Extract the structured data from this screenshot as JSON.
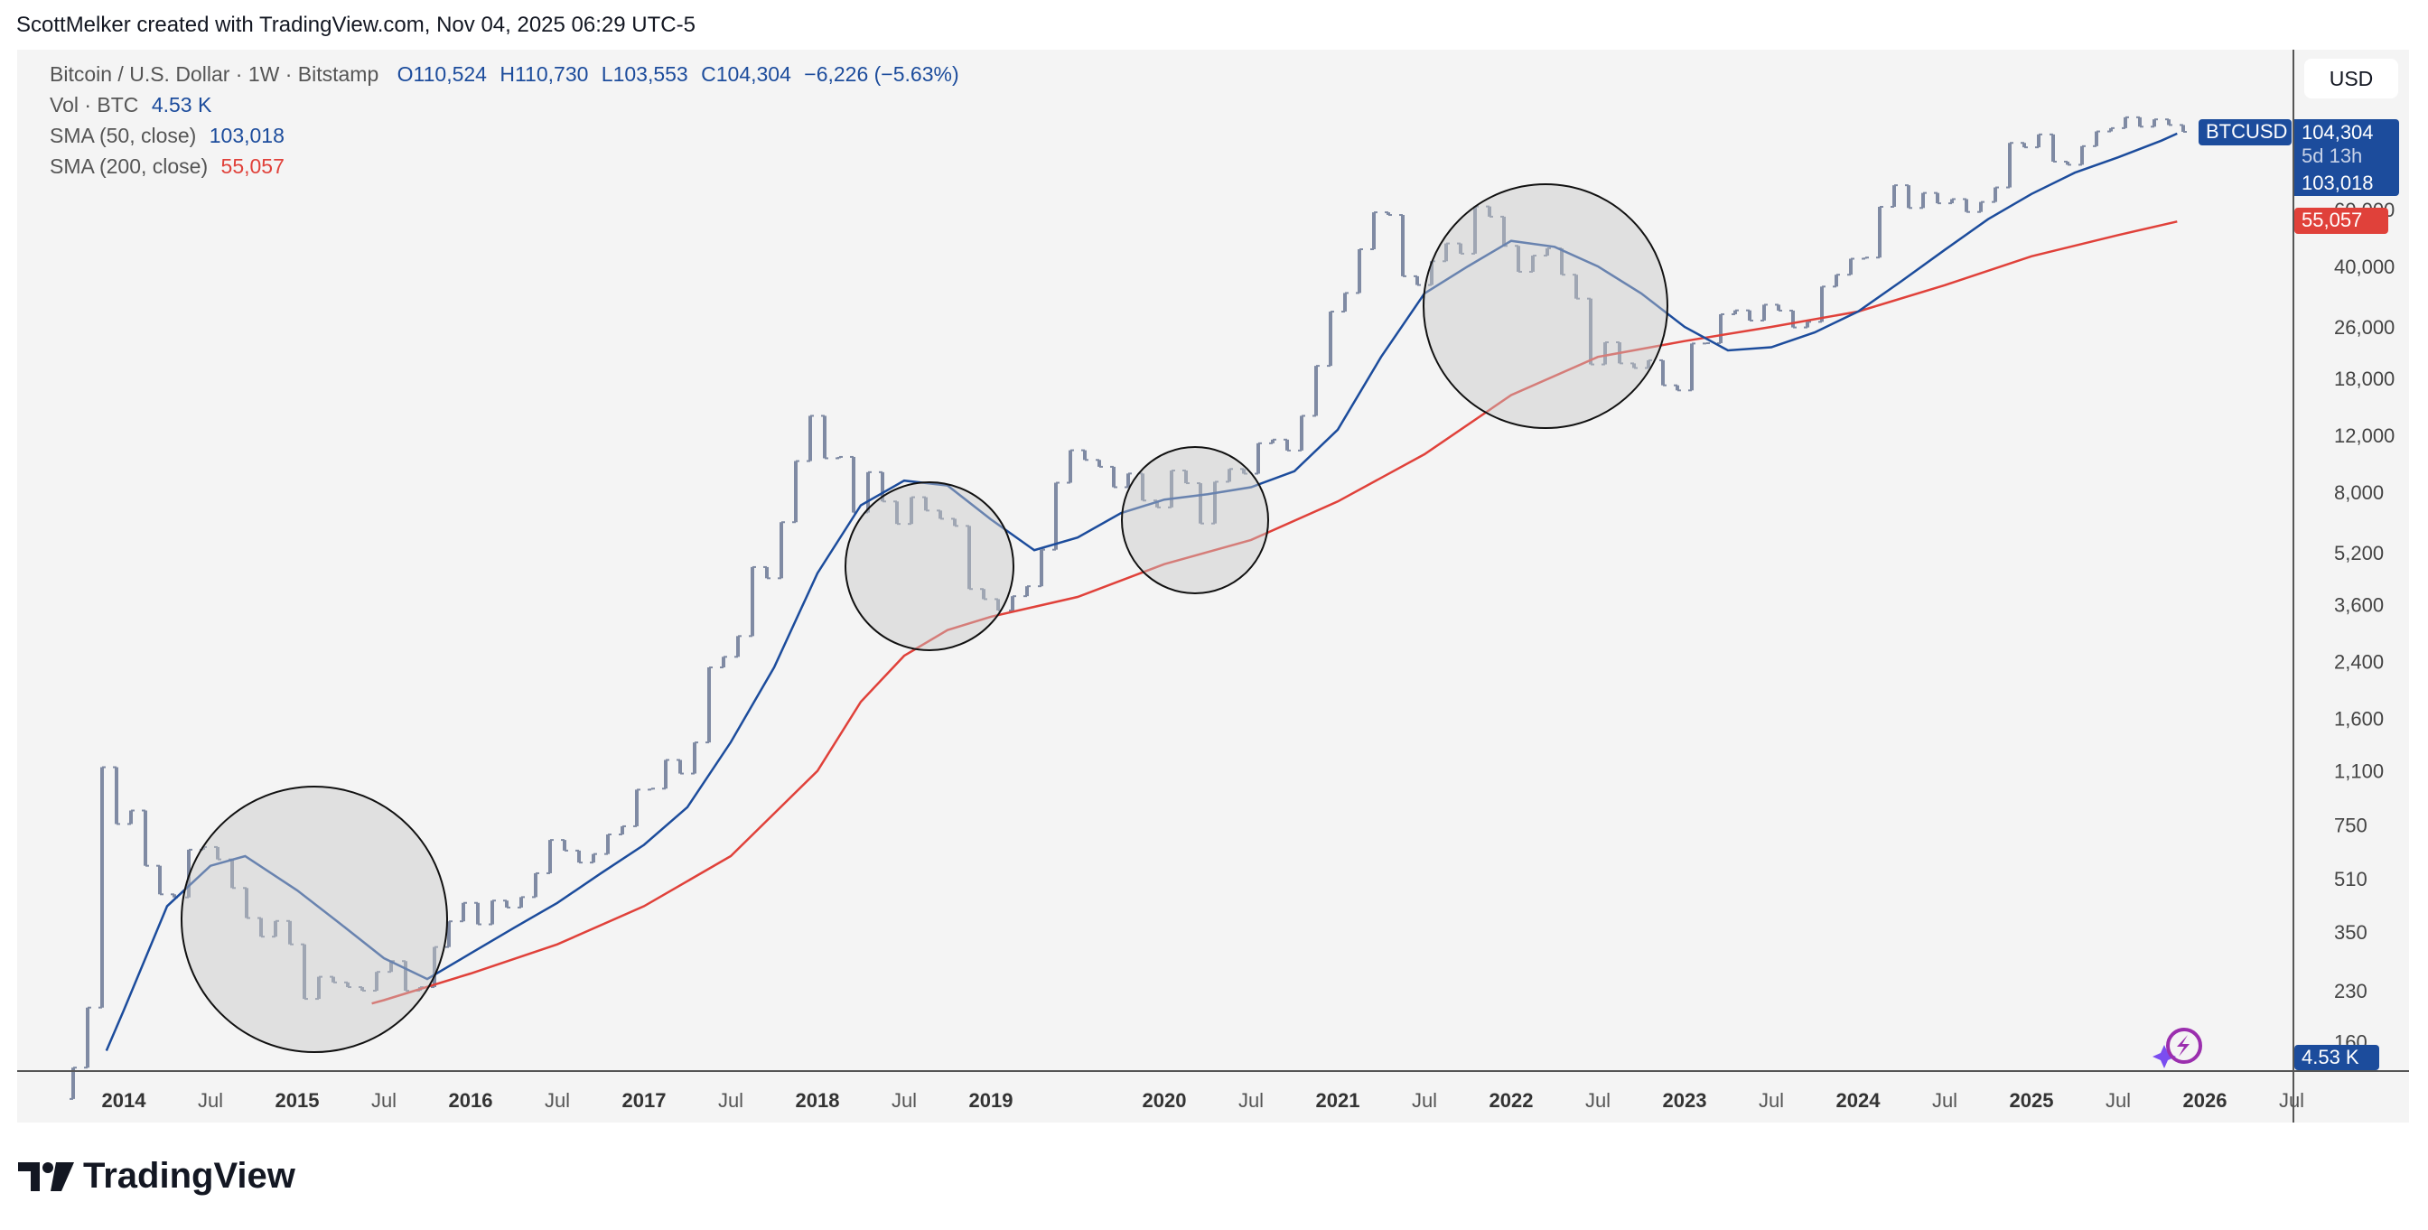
{
  "credit": "ScottMelker created with TradingView.com, Nov 04, 2025 06:29 UTC-5",
  "legend": {
    "symbol": "Bitcoin / U.S. Dollar · 1W · Bitstamp",
    "open": "O110,524",
    "high": "H110,730",
    "low": "L103,553",
    "close": "C104,304",
    "change": "−6,226 (−5.63%)",
    "vol_label": "Vol · BTC",
    "vol_value": "4.53 K",
    "sma50_label": "SMA (50, close)",
    "sma50_value": "103,018",
    "sma200_label": "SMA (200, close)",
    "sma200_value": "55,057"
  },
  "currency_button": "USD",
  "badges": {
    "symbol": "BTCUSD",
    "price": "104,304",
    "countdown": "5d 13h",
    "sma50": "103,018",
    "sma200": "55,057",
    "volume": "4.53 K"
  },
  "colors": {
    "price_badge": "#1c4c9c",
    "sma50": "#1c4c9c",
    "sma200": "#e0413a",
    "bars": "#7f8aa3",
    "panel": "#f4f4f4"
  },
  "brand": "TradingView",
  "chart_data": {
    "type": "line",
    "y_scale": "log",
    "y_ticks": [
      60000,
      40000,
      26000,
      18000,
      12000,
      8000,
      5200,
      3600,
      2400,
      1600,
      1100,
      750,
      510,
      350,
      230,
      160
    ],
    "x_ticks": [
      {
        "label": "2014",
        "t": 2014
      },
      {
        "label": "Jul",
        "t": 2014.5
      },
      {
        "label": "2015",
        "t": 2015
      },
      {
        "label": "Jul",
        "t": 2015.5
      },
      {
        "label": "2016",
        "t": 2016
      },
      {
        "label": "Jul",
        "t": 2016.5
      },
      {
        "label": "2017",
        "t": 2017
      },
      {
        "label": "Jul",
        "t": 2017.5
      },
      {
        "label": "2018",
        "t": 2018
      },
      {
        "label": "Jul",
        "t": 2018.5
      },
      {
        "label": "2019",
        "t": 2019
      },
      {
        "label": "2020",
        "t": 2020
      },
      {
        "label": "Jul",
        "t": 2020.5
      },
      {
        "label": "2021",
        "t": 2021
      },
      {
        "label": "Jul",
        "t": 2021.5
      },
      {
        "label": "2022",
        "t": 2022
      },
      {
        "label": "Jul",
        "t": 2022.5
      },
      {
        "label": "2023",
        "t": 2023
      },
      {
        "label": "Jul",
        "t": 2023.5
      },
      {
        "label": "2024",
        "t": 2024
      },
      {
        "label": "Jul",
        "t": 2024.5
      },
      {
        "label": "2025",
        "t": 2025
      },
      {
        "label": "Jul",
        "t": 2025.5
      },
      {
        "label": "2026",
        "t": 2026
      },
      {
        "label": "Jul",
        "t": 2026.5
      }
    ],
    "price_monthly_close": {
      "start": "2013-09",
      "values": [
        133,
        204,
        1130,
        754,
        830,
        560,
        457,
        447,
        628,
        640,
        586,
        478,
        386,
        338,
        378,
        320,
        217,
        254,
        244,
        236,
        230,
        263,
        284,
        230,
        236,
        314,
        377,
        430,
        369,
        437,
        416,
        448,
        531,
        673,
        624,
        573,
        609,
        700,
        742,
        963,
        970,
        1190,
        1080,
        1348,
        2300,
        2480,
        2875,
        4700,
        4340,
        6470,
        10000,
        13800,
        10200,
        10300,
        6930,
        9240,
        7500,
        6390,
        7730,
        7030,
        6630,
        6300,
        4020,
        3740,
        3450,
        3820,
        4100,
        5320,
        8570,
        10800,
        10080,
        9600,
        8300,
        9150,
        7550,
        7190,
        9350,
        8540,
        6410,
        8630,
        9450,
        9140,
        11350,
        11650,
        10780,
        13800,
        19700,
        28990,
        33100,
        45200,
        58800,
        57700,
        37300,
        35040,
        41500,
        47100,
        43800,
        61300,
        57000,
        46300,
        38500,
        43200,
        45500,
        37700,
        31800,
        19900,
        23300,
        20050,
        19400,
        20500,
        17150,
        16540,
        23100,
        23150,
        28450,
        29250,
        27200,
        30450,
        29200,
        25900,
        26950,
        34650,
        37700,
        42250,
        42600,
        61150,
        71300,
        60650,
        67500,
        62700,
        64600,
        58950,
        63300,
        70200,
        96400,
        93400,
        102400,
        84350,
        82500,
        94200,
        104600,
        107100,
        115700,
        108200,
        114000,
        109500,
        104304
      ]
    },
    "series": [
      {
        "name": "SMA (50, close)",
        "points": [
          [
            2013.9,
            150
          ],
          [
            2014.0,
            200
          ],
          [
            2014.25,
            420
          ],
          [
            2014.5,
            560
          ],
          [
            2014.7,
            600
          ],
          [
            2015.0,
            470
          ],
          [
            2015.25,
            370
          ],
          [
            2015.5,
            290
          ],
          [
            2015.75,
            250
          ],
          [
            2016.0,
            300
          ],
          [
            2016.25,
            360
          ],
          [
            2016.5,
            430
          ],
          [
            2016.75,
            530
          ],
          [
            2017.0,
            650
          ],
          [
            2017.25,
            850
          ],
          [
            2017.5,
            1350
          ],
          [
            2017.75,
            2300
          ],
          [
            2018.0,
            4500
          ],
          [
            2018.25,
            7300
          ],
          [
            2018.5,
            8700
          ],
          [
            2018.75,
            8400
          ],
          [
            2019.0,
            6600
          ],
          [
            2019.25,
            5300
          ],
          [
            2019.5,
            5800
          ],
          [
            2019.75,
            6900
          ],
          [
            2020.0,
            7600
          ],
          [
            2020.25,
            7900
          ],
          [
            2020.5,
            8300
          ],
          [
            2020.75,
            9300
          ],
          [
            2021.0,
            12500
          ],
          [
            2021.25,
            21000
          ],
          [
            2021.5,
            33000
          ],
          [
            2021.75,
            40000
          ],
          [
            2022.0,
            48000
          ],
          [
            2022.25,
            46000
          ],
          [
            2022.5,
            40000
          ],
          [
            2022.75,
            33000
          ],
          [
            2023.0,
            26000
          ],
          [
            2023.25,
            22000
          ],
          [
            2023.5,
            22500
          ],
          [
            2023.75,
            25000
          ],
          [
            2024.0,
            29000
          ],
          [
            2024.25,
            36000
          ],
          [
            2024.5,
            45000
          ],
          [
            2024.75,
            56000
          ],
          [
            2025.0,
            67000
          ],
          [
            2025.25,
            78000
          ],
          [
            2025.5,
            87000
          ],
          [
            2025.75,
            98000
          ],
          [
            2025.84,
            103018
          ]
        ]
      },
      {
        "name": "SMA (200, close)",
        "points": [
          [
            2015.43,
            210
          ],
          [
            2015.5,
            215
          ],
          [
            2016.0,
            260
          ],
          [
            2016.5,
            320
          ],
          [
            2017.0,
            420
          ],
          [
            2017.5,
            600
          ],
          [
            2018.0,
            1100
          ],
          [
            2018.25,
            1800
          ],
          [
            2018.5,
            2500
          ],
          [
            2018.75,
            3000
          ],
          [
            2019.0,
            3300
          ],
          [
            2019.5,
            3800
          ],
          [
            2020.0,
            4800
          ],
          [
            2020.5,
            5700
          ],
          [
            2021.0,
            7500
          ],
          [
            2021.5,
            10500
          ],
          [
            2022.0,
            16000
          ],
          [
            2022.5,
            21000
          ],
          [
            2023.0,
            23500
          ],
          [
            2023.5,
            26000
          ],
          [
            2024.0,
            29000
          ],
          [
            2024.5,
            35000
          ],
          [
            2025.0,
            43000
          ],
          [
            2025.5,
            50000
          ],
          [
            2025.84,
            55057
          ]
        ]
      }
    ]
  }
}
